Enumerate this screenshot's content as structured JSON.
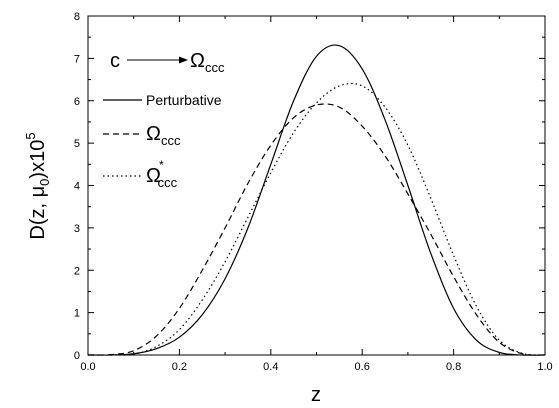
{
  "chart_data": {
    "type": "line",
    "xlabel": "z",
    "ylabel_main": "D(z, μ",
    "ylabel_sub": "0",
    "ylabel_tail": ")x10",
    "ylabel_sup": "5",
    "xlim": [
      0.0,
      1.0
    ],
    "ylim": [
      0,
      8
    ],
    "x_ticks": [
      "0.0",
      "0.2",
      "0.4",
      "0.6",
      "0.8",
      "1.0"
    ],
    "y_ticks": [
      "0",
      "1",
      "2",
      "3",
      "4",
      "5",
      "6",
      "7",
      "8"
    ],
    "grid": false,
    "annotation": {
      "from": "c",
      "to_main": "Ω",
      "to_sub": "ccc"
    },
    "legend_position": "top-left",
    "series": [
      {
        "name": "Perturbative",
        "style": "solid",
        "x": [
          0.0,
          0.05,
          0.1,
          0.15,
          0.2,
          0.25,
          0.3,
          0.35,
          0.4,
          0.45,
          0.5,
          0.55,
          0.6,
          0.65,
          0.7,
          0.75,
          0.8,
          0.85,
          0.9,
          0.95,
          1.0
        ],
        "y": [
          0.0,
          0.0,
          0.03,
          0.15,
          0.42,
          0.95,
          1.8,
          3.0,
          4.5,
          6.0,
          7.05,
          7.3,
          6.75,
          5.55,
          4.0,
          2.4,
          1.1,
          0.35,
          0.06,
          0.0,
          0.0
        ]
      },
      {
        "name_main": "Ω",
        "name_sub": "ccc",
        "style": "dashed",
        "x": [
          0.0,
          0.05,
          0.1,
          0.15,
          0.2,
          0.25,
          0.3,
          0.35,
          0.4,
          0.45,
          0.5,
          0.55,
          0.6,
          0.65,
          0.7,
          0.75,
          0.8,
          0.85,
          0.9,
          0.95,
          1.0
        ],
        "y": [
          0.0,
          0.01,
          0.1,
          0.45,
          1.1,
          2.0,
          3.0,
          4.05,
          4.95,
          5.6,
          5.9,
          5.85,
          5.4,
          4.7,
          3.8,
          2.85,
          1.85,
          0.95,
          0.3,
          0.03,
          0.0
        ]
      },
      {
        "name_main": "Ω",
        "name_sup": "*",
        "name_sub": "ccc",
        "style": "dotted",
        "x": [
          0.0,
          0.05,
          0.1,
          0.15,
          0.2,
          0.25,
          0.3,
          0.35,
          0.4,
          0.45,
          0.5,
          0.55,
          0.6,
          0.65,
          0.7,
          0.75,
          0.8,
          0.85,
          0.9,
          0.95,
          1.0
        ],
        "y": [
          0.0,
          0.0,
          0.02,
          0.2,
          0.6,
          1.3,
          2.2,
          3.25,
          4.3,
          5.25,
          5.95,
          6.35,
          6.35,
          5.85,
          4.95,
          3.7,
          2.35,
          1.15,
          0.35,
          0.04,
          0.0
        ]
      }
    ]
  }
}
